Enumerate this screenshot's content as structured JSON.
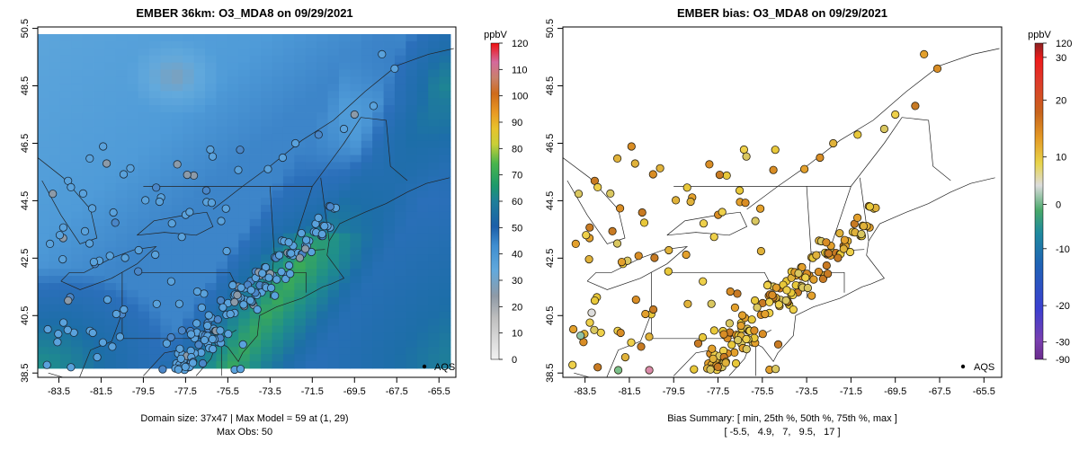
{
  "chart_data": [
    {
      "type": "map",
      "title": "EMBER 36km: O3_MDA8 on 09/29/2021",
      "xlim": [
        -84.5,
        -64.7
      ],
      "ylim": [
        38.35,
        50.55
      ],
      "x_ticks": [
        "-83.5",
        "-81.5",
        "-79.5",
        "-77.5",
        "-75.5",
        "-73.5",
        "-71.5",
        "-69.5",
        "-67.5",
        "-65.5"
      ],
      "y_ticks": [
        "38.5",
        "40.5",
        "42.5",
        "44.5",
        "46.5",
        "48.5",
        "50.5"
      ],
      "colorbar": {
        "units": "ppbV",
        "ticks": [
          "0",
          "10",
          "20",
          "30",
          "40",
          "50",
          "60",
          "70",
          "80",
          "90",
          "100",
          "110",
          "120"
        ],
        "range": [
          0,
          120
        ]
      },
      "legend_label": "AQS",
      "footer": [
        "Domain size: 37x47 | Max Model = 59 at (1, 29)",
        "Max Obs: 50"
      ],
      "model_field_ppbv": {
        "background": 38,
        "ocean_plume": 57,
        "coast": 33,
        "north_gray": 20
      },
      "site_obs_ppbv": {
        "typical": 32,
        "range": [
          20,
          50
        ]
      }
    },
    {
      "type": "map",
      "title": "EMBER bias: O3_MDA8 on 09/29/2021",
      "xlim": [
        -84.5,
        -64.7
      ],
      "ylim": [
        38.35,
        50.55
      ],
      "x_ticks": [
        "-83.5",
        "-81.5",
        "-79.5",
        "-77.5",
        "-75.5",
        "-73.5",
        "-71.5",
        "-69.5",
        "-67.5",
        "-65.5"
      ],
      "y_ticks": [
        "38.5",
        "40.5",
        "42.5",
        "44.5",
        "46.5",
        "48.5",
        "50.5"
      ],
      "colorbar": {
        "units": "ppbV",
        "ticks": [
          "-90",
          "-30",
          "-20",
          "-10",
          "0",
          "10",
          "20",
          "30",
          "120"
        ],
        "range": [
          -90,
          120
        ]
      },
      "legend_label": "AQS",
      "footer": [
        "Bias Summary: [ min, 25th %, 50th %, 75th %, max ]",
        "[ -5.5,   4.9,   7,   9.5,   17 ]"
      ],
      "bias_summary": {
        "min": -5.5,
        "p25": 4.9,
        "p50": 7,
        "p75": 9.5,
        "max": 17
      }
    }
  ]
}
